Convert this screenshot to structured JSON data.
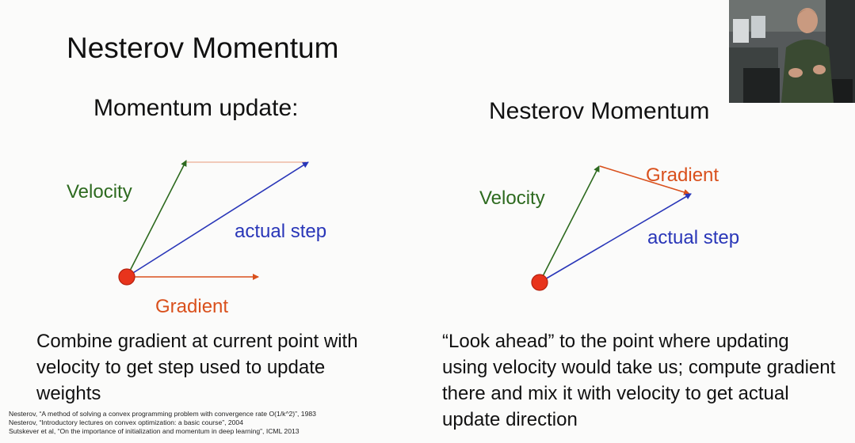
{
  "slide": {
    "title": "Nesterov Momentum",
    "left_panel": {
      "heading": "Momentum update:",
      "labels": {
        "velocity": "Velocity",
        "actual_step": "actual step",
        "gradient": "Gradient"
      },
      "description": "Combine gradient at current point with velocity to get step used to update weights"
    },
    "right_panel": {
      "heading": "Nesterov Momentum",
      "labels": {
        "velocity": "Velocity",
        "gradient": "Gradient",
        "actual_step": "actual step"
      },
      "description": "“Look ahead” to the point where updating using velocity would take us; compute gradient there and mix it with velocity to get actual update direction"
    },
    "references": [
      "Nesterov, “A method of solving a convex programming problem with convergence rate O(1/k^2)”, 1983",
      "Nesterov, “Introductory lectures on convex optimization: a basic course”, 2004",
      "Sutskever et al, “On the importance of initialization and momentum in deep learning”, ICML 2013"
    ]
  },
  "colors": {
    "velocity": "#2d6a1f",
    "actual_step": "#2936b8",
    "gradient": "#d9501c",
    "point": "#e8341c"
  }
}
